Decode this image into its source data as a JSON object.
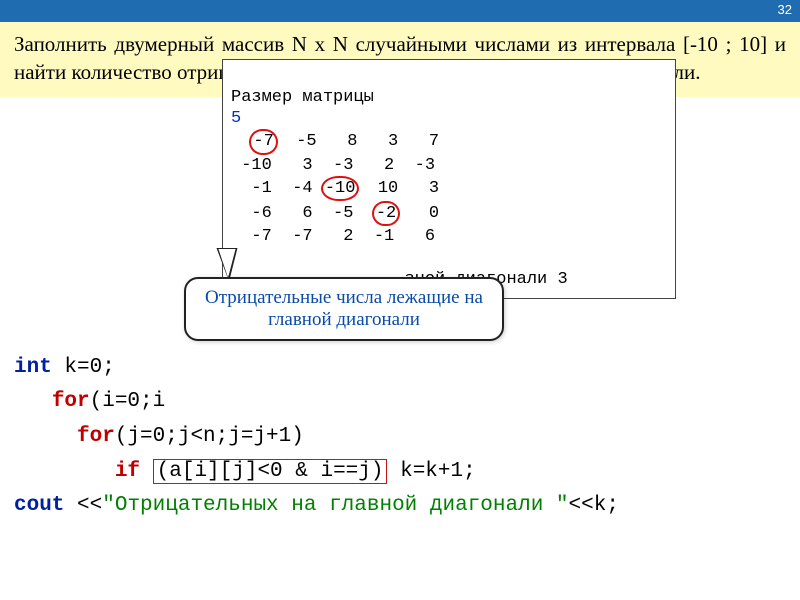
{
  "page_number": "32",
  "task_text": "Заполнить двумерный массив N x N случайными числами из интервала [-10 ; 10] и найти количество отрицательных элементов лежащих на главной диагонали.",
  "output": {
    "title": "Размер матрицы",
    "n_value": "5",
    "matrix": [
      [
        "  -7",
        "  -5",
        "   8",
        "   3",
        "   7"
      ],
      [
        " -10",
        "   3",
        "  -3",
        "   2",
        "  -3"
      ],
      [
        "  -1",
        "  -4",
        " -10",
        "  10",
        "   3"
      ],
      [
        "  -6",
        "   6",
        "  -5",
        "  -2",
        "   0"
      ],
      [
        "  -7",
        "  -7",
        "   2",
        "  -1",
        "   6"
      ]
    ],
    "diag_highlight": [
      [
        0,
        0
      ],
      [
        2,
        2
      ],
      [
        3,
        3
      ]
    ],
    "result_tail": "зной диагонали 3"
  },
  "callout_text": "Отрицательные числа лежащие на главной диагонали",
  "code": {
    "l1a": "int",
    "l1b": " k=0;",
    "l2a": "for",
    "l2b": "(i=0;i",
    "l3a": "for",
    "l3b": "(j=0;j<n;j=j+1)",
    "l4a": "if ",
    "l4cond": "(a[i][j]<0 & i==j)",
    "l4b": " k=k+1;",
    "l5a": "cout <<",
    "l5str": "\"Отрицательных на главной диагонали \"",
    "l5b": "<<k;"
  },
  "colors": {
    "header_bg": "#1f6cb0",
    "task_bg": "#fffac0",
    "circle": "#d11",
    "callout_text": "#0a4aa8"
  }
}
